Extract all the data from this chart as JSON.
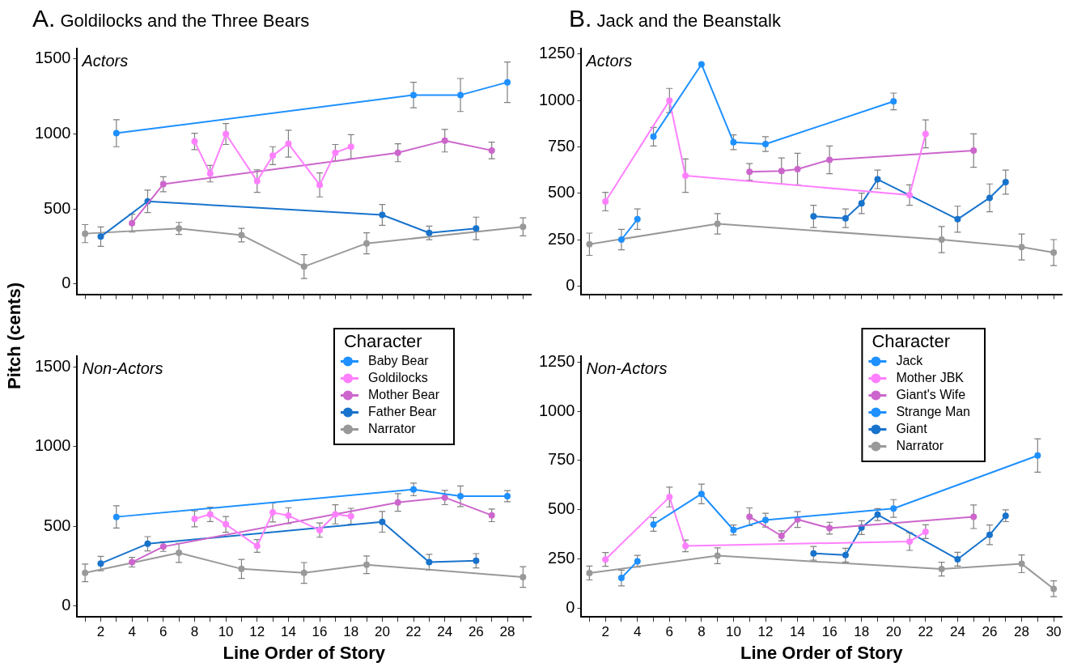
{
  "chart_data": [
    {
      "type": "line",
      "title": "A. Goldilocks and the Three Bears",
      "ylabel": "Pitch (cents)",
      "annotations": [
        "Actors"
      ],
      "marker": "circle",
      "legend": false,
      "tick_labels": "y",
      "xlim": [
        0.5,
        29.5
      ],
      "ylim": [
        -70,
        1570
      ],
      "yticks": [
        0,
        500,
        1000,
        1500
      ],
      "xticks": [
        {
          "value": 1,
          "label": null
        },
        2,
        {
          "value": 3,
          "label": null
        },
        4,
        {
          "value": 5,
          "label": null
        },
        6,
        {
          "value": 7,
          "label": null
        },
        8,
        {
          "value": 9,
          "label": null
        },
        10,
        {
          "value": 11,
          "label": null
        },
        12,
        {
          "value": 13,
          "label": null
        },
        14,
        {
          "value": 15,
          "label": null
        },
        16,
        {
          "value": 17,
          "label": null
        },
        18,
        {
          "value": 19,
          "label": null
        },
        20,
        {
          "value": 21,
          "label": null
        },
        22,
        {
          "value": 23,
          "label": null
        },
        24,
        {
          "value": 25,
          "label": null
        },
        26,
        {
          "value": 27,
          "label": null
        },
        28,
        {
          "value": 29,
          "label": null
        }
      ],
      "series": [
        {
          "color": "#1e90ff",
          "x": [
            3,
            22,
            25,
            28
          ],
          "values": [
            1005,
            1260,
            1260,
            1345
          ],
          "errors": [
            90,
            85,
            110,
            135
          ]
        },
        {
          "color": "#ff80ff",
          "x": [
            8,
            9,
            10,
            12,
            13,
            14,
            16,
            17,
            18
          ],
          "values": [
            950,
            735,
            1000,
            685,
            855,
            935,
            660,
            875,
            915
          ],
          "errors": [
            55,
            55,
            70,
            75,
            60,
            90,
            80,
            55,
            80
          ]
        },
        {
          "color": "#cc66cc",
          "x": [
            4,
            6,
            21,
            24,
            27
          ],
          "values": [
            405,
            665,
            875,
            955,
            890
          ],
          "errors": [
            60,
            50,
            60,
            75,
            55
          ]
        },
        {
          "color": "#1873cc",
          "x": [
            2,
            5,
            20,
            23,
            26
          ],
          "values": [
            315,
            550,
            460,
            340,
            370
          ],
          "errors": [
            65,
            75,
            70,
            45,
            75
          ]
        },
        {
          "color": "#999999",
          "x": [
            1,
            7,
            11,
            15,
            19,
            29
          ],
          "values": [
            335,
            370,
            325,
            115,
            270,
            380
          ],
          "errors": [
            60,
            40,
            45,
            80,
            70,
            60
          ]
        }
      ]
    },
    {
      "type": "line",
      "title": "B. Jack and the Beanstalk",
      "annotations": [
        "Actors"
      ],
      "marker": "circle",
      "legend": false,
      "tick_labels": "y",
      "xlim": [
        0.5,
        30.5
      ],
      "ylim": [
        -45,
        1280
      ],
      "yticks": [
        0,
        250,
        500,
        750,
        1000,
        1250
      ],
      "xticks": [
        {
          "value": 1,
          "label": null
        },
        2,
        {
          "value": 3,
          "label": null
        },
        4,
        {
          "value": 5,
          "label": null
        },
        6,
        {
          "value": 7,
          "label": null
        },
        8,
        {
          "value": 9,
          "label": null
        },
        10,
        {
          "value": 11,
          "label": null
        },
        12,
        {
          "value": 13,
          "label": null
        },
        14,
        {
          "value": 15,
          "label": null
        },
        16,
        {
          "value": 17,
          "label": null
        },
        18,
        {
          "value": 19,
          "label": null
        },
        20,
        {
          "value": 21,
          "label": null
        },
        22,
        {
          "value": 23,
          "label": null
        },
        24,
        {
          "value": 25,
          "label": null
        },
        26,
        {
          "value": 27,
          "label": null
        },
        28,
        {
          "value": 29,
          "label": null
        },
        30
      ],
      "series": [
        {
          "color": "#1e90ff",
          "x": [
            5,
            8,
            10,
            12,
            20
          ],
          "values": [
            805,
            1195,
            775,
            765,
            995
          ],
          "errors": [
            50,
            null,
            40,
            40,
            45
          ]
        },
        {
          "color": "#ff80ff",
          "x": [
            2,
            6,
            7,
            21,
            22
          ],
          "values": [
            455,
            1000,
            595,
            490,
            820
          ],
          "errors": [
            50,
            65,
            90,
            55,
            75
          ]
        },
        {
          "color": "#cc66cc",
          "x": [
            11,
            13,
            14,
            16,
            25
          ],
          "values": [
            615,
            620,
            630,
            680,
            730
          ],
          "errors": [
            45,
            70,
            85,
            75,
            90
          ]
        },
        {
          "color": "#1e90ff",
          "x": [
            3,
            4
          ],
          "values": [
            250,
            360
          ],
          "errors": [
            55,
            55
          ]
        },
        {
          "color": "#1873cc",
          "x": [
            15,
            17,
            18,
            19,
            24,
            26,
            27
          ],
          "values": [
            375,
            365,
            445,
            575,
            360,
            475,
            560
          ],
          "errors": [
            60,
            50,
            55,
            50,
            70,
            75,
            65
          ]
        },
        {
          "color": "#999999",
          "x": [
            1,
            9,
            23,
            28,
            30
          ],
          "values": [
            225,
            335,
            250,
            210,
            180
          ],
          "errors": [
            60,
            55,
            70,
            70,
            70
          ]
        }
      ]
    },
    {
      "type": "line",
      "xlabel": "Line Order of Story",
      "annotations": [
        "Non-Actors"
      ],
      "marker": "circle",
      "legend": "top right",
      "legend_title": "Character",
      "xlim": [
        0.5,
        29.5
      ],
      "ylim": [
        -70,
        1570
      ],
      "yticks": [
        0,
        500,
        1000,
        1500
      ],
      "xticks": [
        {
          "value": 1,
          "label": null
        },
        2,
        {
          "value": 3,
          "label": null
        },
        4,
        {
          "value": 5,
          "label": null
        },
        6,
        {
          "value": 7,
          "label": null
        },
        8,
        {
          "value": 9,
          "label": null
        },
        10,
        {
          "value": 11,
          "label": null
        },
        12,
        {
          "value": 13,
          "label": null
        },
        14,
        {
          "value": 15,
          "label": null
        },
        16,
        {
          "value": 17,
          "label": null
        },
        18,
        {
          "value": 19,
          "label": null
        },
        20,
        {
          "value": 21,
          "label": null
        },
        22,
        {
          "value": 23,
          "label": null
        },
        24,
        {
          "value": 25,
          "label": null
        },
        26,
        {
          "value": 27,
          "label": null
        },
        28,
        {
          "value": 29,
          "label": null
        }
      ],
      "series": [
        {
          "name": "Baby Bear",
          "color": "#1e90ff",
          "x": [
            3,
            22,
            25,
            28
          ],
          "values": [
            559,
            732,
            689,
            689
          ],
          "errors": [
            70,
            40,
            65,
            35
          ]
        },
        {
          "name": "Goldilocks",
          "color": "#ff80ff",
          "x": [
            8,
            9,
            10,
            12,
            13,
            14,
            16,
            17,
            18
          ],
          "values": [
            547,
            575,
            512,
            376,
            587,
            567,
            476,
            575,
            563
          ],
          "errors": [
            50,
            45,
            50,
            40,
            60,
            50,
            45,
            60,
            50
          ]
        },
        {
          "name": "Mother Bear",
          "color": "#cc66cc",
          "x": [
            4,
            6,
            21,
            24,
            27
          ],
          "values": [
            274,
            372,
            650,
            681,
            569
          ],
          "errors": [
            30,
            30,
            55,
            45,
            40
          ]
        },
        {
          "name": "Father Bear",
          "color": "#1873cc",
          "x": [
            2,
            5,
            20,
            23,
            26
          ],
          "values": [
            266,
            390,
            528,
            274,
            283
          ],
          "errors": [
            45,
            45,
            65,
            50,
            45
          ]
        },
        {
          "name": "Narrator",
          "color": "#999999",
          "x": [
            1,
            7,
            11,
            15,
            19,
            29
          ],
          "values": [
            207,
            333,
            232,
            207,
            258,
            181
          ],
          "errors": [
            55,
            60,
            60,
            65,
            55,
            65
          ]
        }
      ]
    },
    {
      "type": "line",
      "xlabel": "Line Order of Story",
      "annotations": [
        "Non-Actors"
      ],
      "marker": "circle",
      "legend": "top right",
      "legend_title": "Character",
      "xlim": [
        0.5,
        30.5
      ],
      "ylim": [
        -45,
        1280
      ],
      "yticks": [
        0,
        250,
        500,
        750,
        1000,
        1250
      ],
      "xticks": [
        {
          "value": 1,
          "label": null
        },
        2,
        {
          "value": 3,
          "label": null
        },
        4,
        {
          "value": 5,
          "label": null
        },
        6,
        {
          "value": 7,
          "label": null
        },
        8,
        {
          "value": 9,
          "label": null
        },
        10,
        {
          "value": 11,
          "label": null
        },
        12,
        {
          "value": 13,
          "label": null
        },
        14,
        {
          "value": 15,
          "label": null
        },
        16,
        {
          "value": 17,
          "label": null
        },
        18,
        {
          "value": 19,
          "label": null
        },
        20,
        {
          "value": 21,
          "label": null
        },
        22,
        {
          "value": 23,
          "label": null
        },
        24,
        {
          "value": 25,
          "label": null
        },
        26,
        {
          "value": 27,
          "label": null
        },
        28,
        {
          "value": 29,
          "label": null
        },
        30
      ],
      "series": [
        {
          "name": "Jack",
          "color": "#1e90ff",
          "x": [
            5,
            8,
            10,
            12,
            20,
            29
          ],
          "values": [
            425,
            580,
            397,
            447,
            506,
            775
          ],
          "errors": [
            35,
            50,
            25,
            35,
            45,
            85
          ]
        },
        {
          "name": "Mother JBK",
          "color": "#ff80ff",
          "x": [
            2,
            6,
            7,
            21,
            22
          ],
          "values": [
            247,
            564,
            316,
            338,
            388
          ],
          "errors": [
            35,
            50,
            30,
            45,
            35
          ]
        },
        {
          "name": "Giant's Wife",
          "color": "#cc66cc",
          "x": [
            11,
            13,
            14,
            16,
            25
          ],
          "values": [
            464,
            367,
            450,
            406,
            464
          ],
          "errors": [
            45,
            25,
            40,
            30,
            60
          ]
        },
        {
          "name": "Strange Man",
          "color": "#1e90ff",
          "x": [
            3,
            4
          ],
          "values": [
            153,
            238
          ],
          "errors": [
            40,
            30
          ]
        },
        {
          "name": "Giant",
          "color": "#1873cc",
          "x": [
            15,
            17,
            18,
            19,
            24,
            26,
            27
          ],
          "values": [
            278,
            269,
            409,
            475,
            248,
            372,
            469
          ],
          "errors": [
            35,
            35,
            35,
            30,
            35,
            50,
            30
          ]
        },
        {
          "name": "Narrator",
          "color": "#999999",
          "x": [
            1,
            9,
            23,
            28,
            30
          ],
          "values": [
            178,
            266,
            198,
            225,
            98
          ],
          "errors": [
            35,
            40,
            35,
            45,
            40
          ]
        }
      ]
    }
  ]
}
